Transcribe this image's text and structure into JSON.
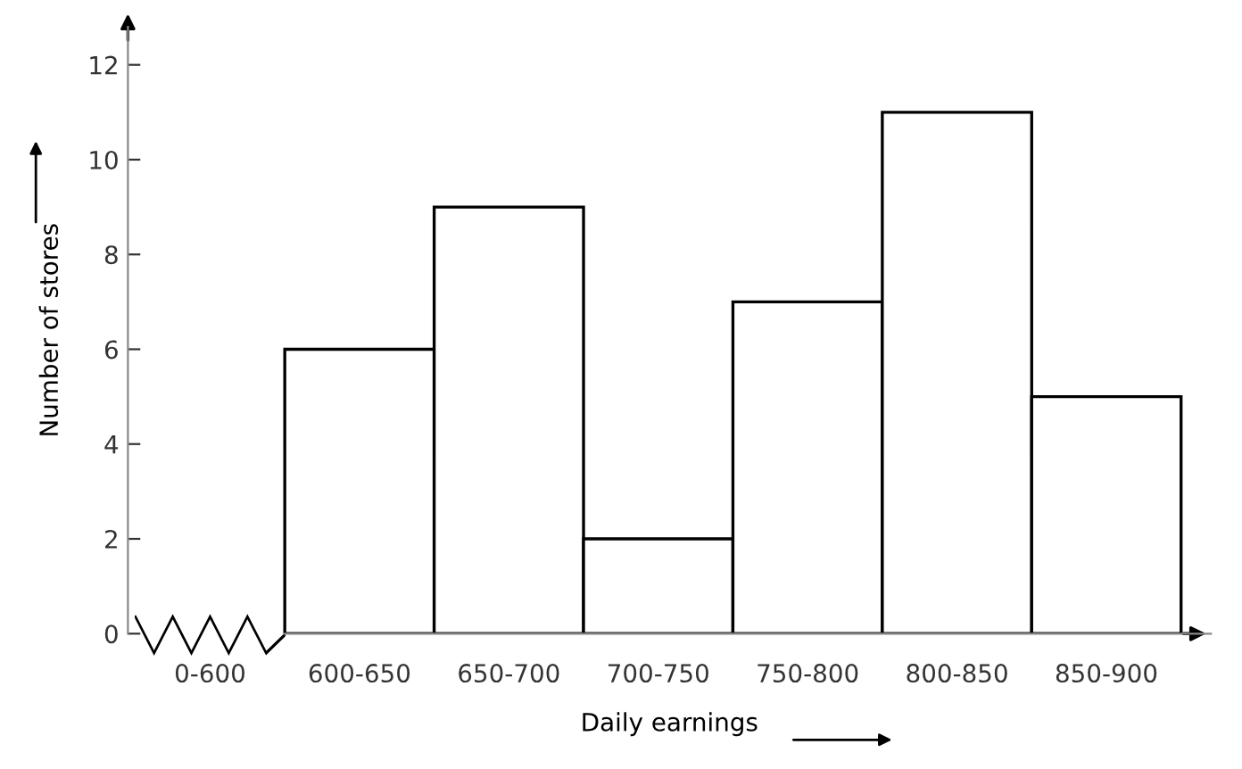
{
  "chart_data": {
    "type": "bar",
    "xlabel": "Daily earnings",
    "ylabel": "Number of stores",
    "categories": [
      "0-600",
      "600-650",
      "650-700",
      "700-750",
      "750-800",
      "800-850",
      "850-900"
    ],
    "series": [
      {
        "color": "#ffffff",
        "values": [
          null,
          6,
          9,
          2,
          7,
          11,
          5
        ]
      }
    ],
    "ylim": [
      0,
      12.8
    ],
    "yticks": [
      0,
      2,
      4,
      6,
      8,
      10,
      12
    ],
    "grid": false,
    "legend": false
  }
}
